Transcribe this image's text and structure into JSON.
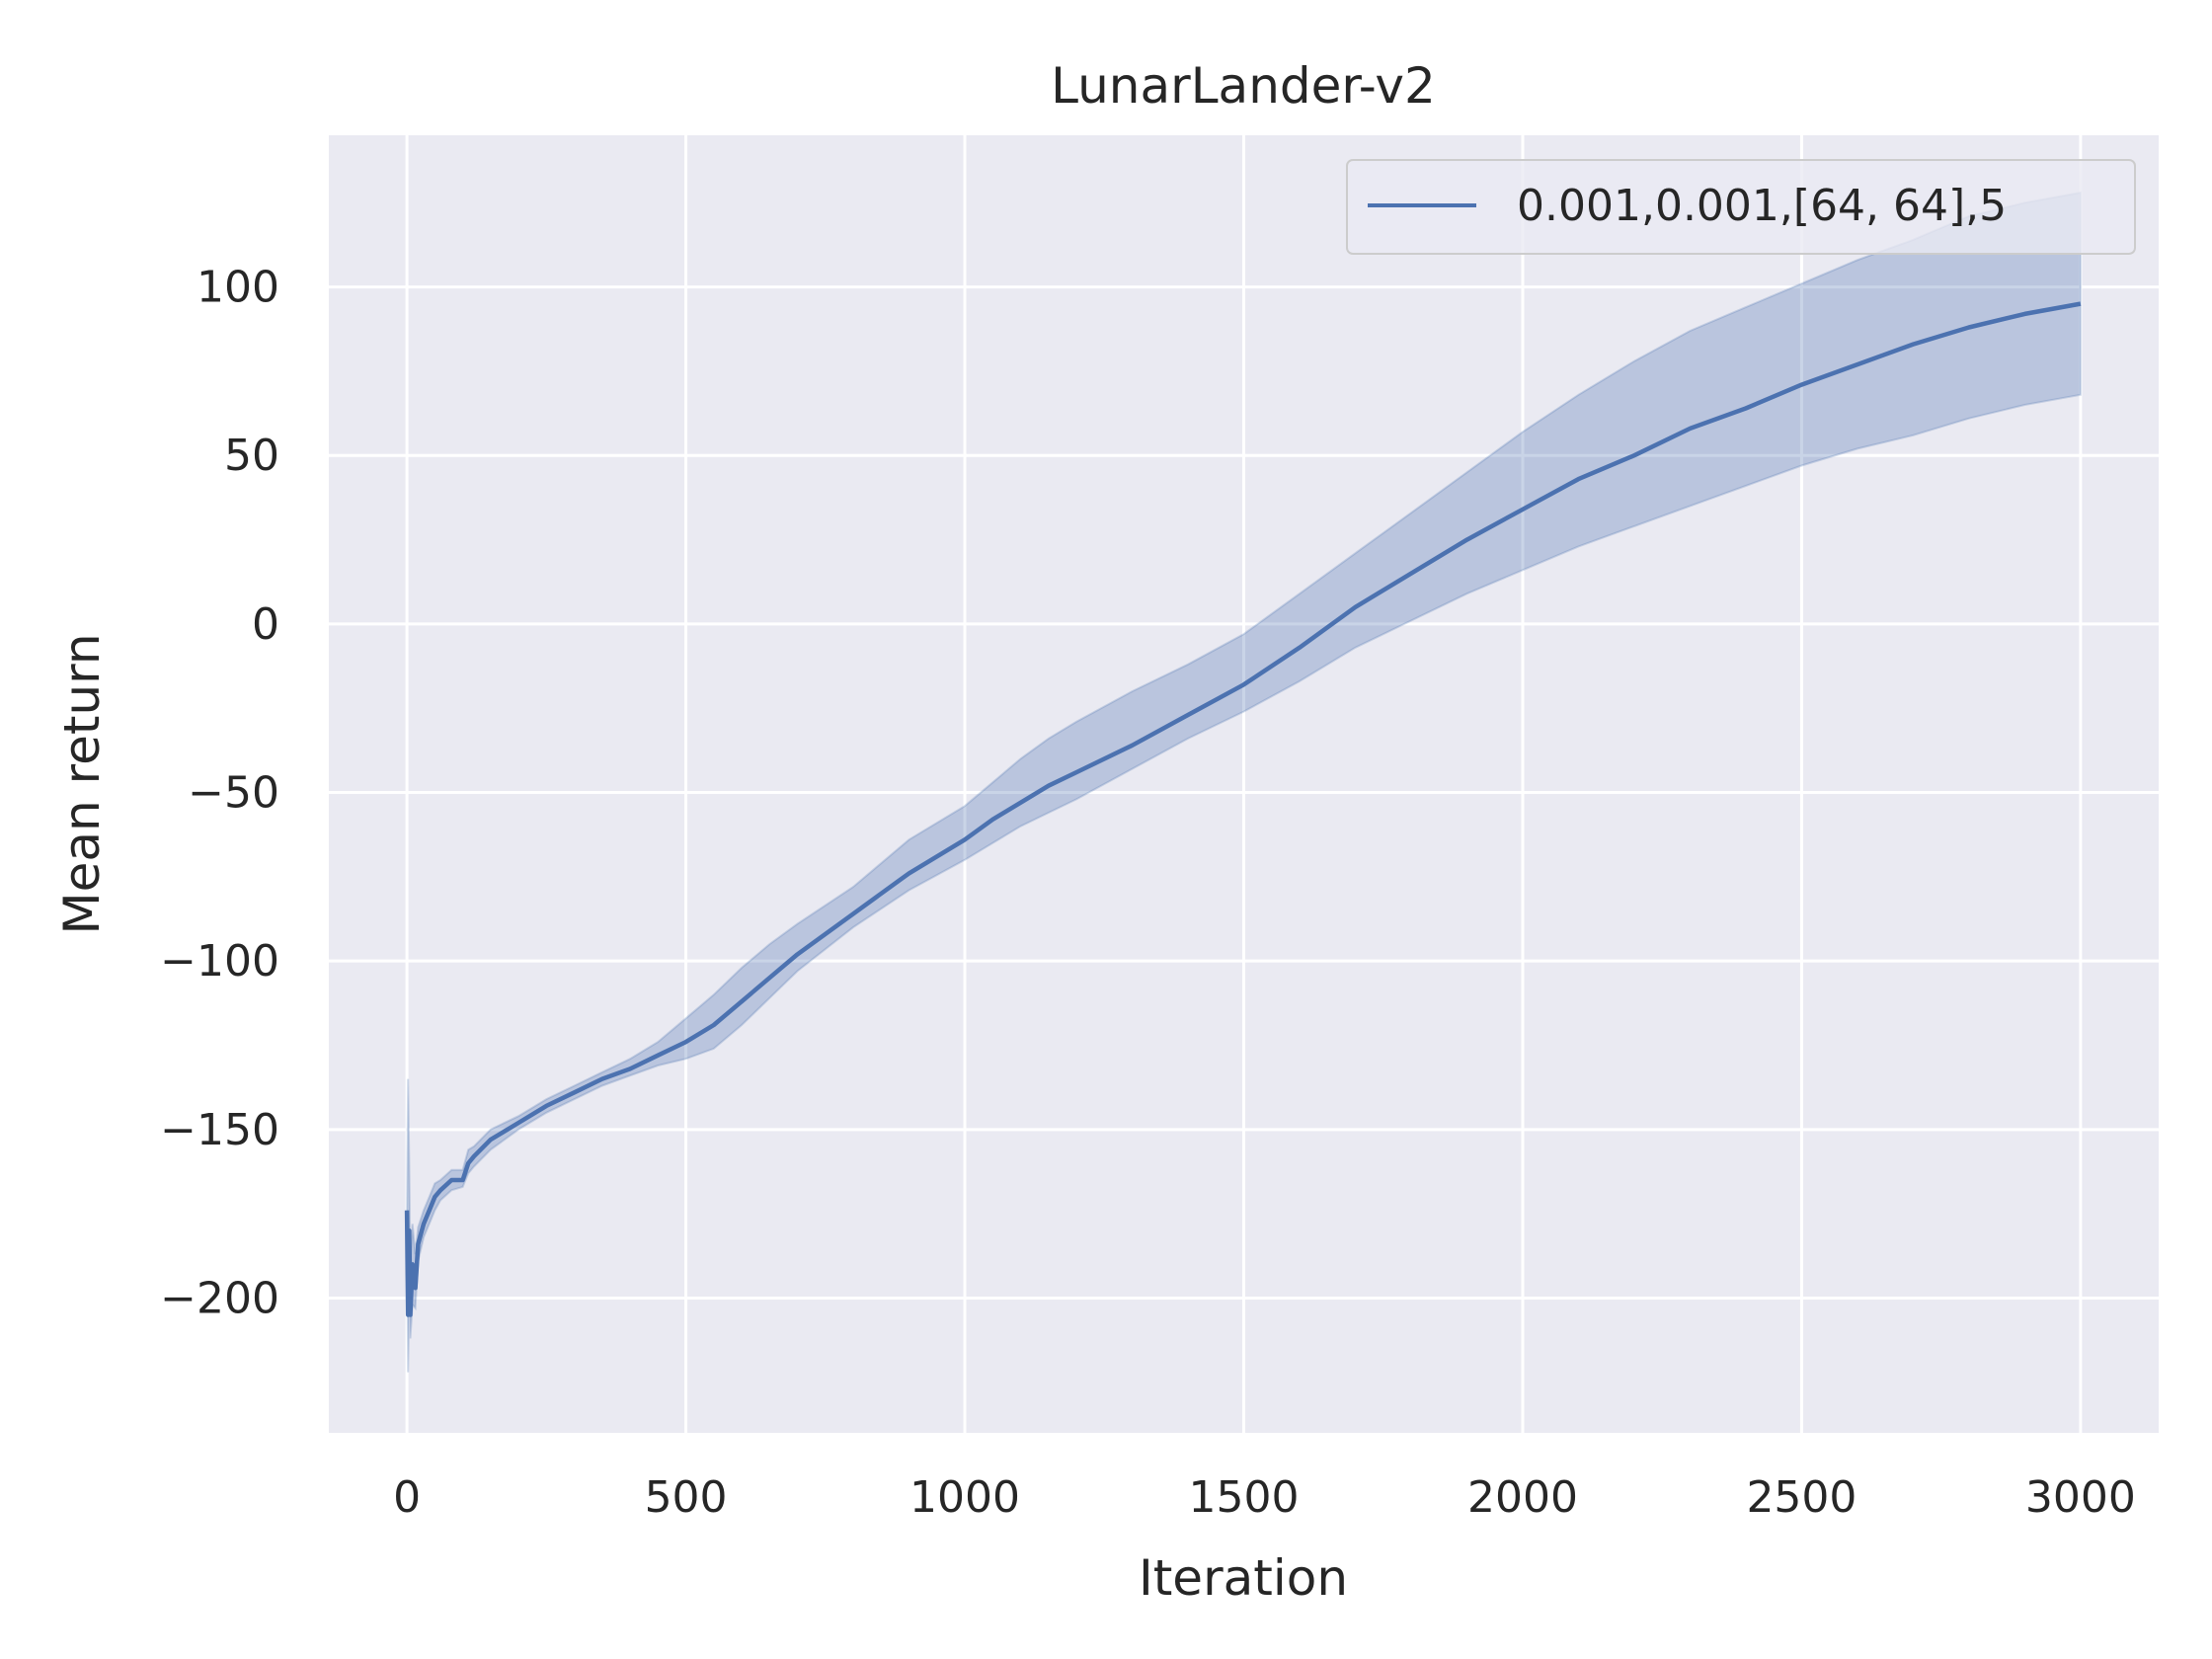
{
  "chart_data": {
    "type": "line",
    "title": "LunarLander-v2",
    "xlabel": "Iteration",
    "ylabel": "Mean return",
    "xlim": [
      -140,
      3140
    ],
    "ylim": [
      -240,
      145
    ],
    "xticks": [
      0,
      500,
      1000,
      1500,
      2000,
      2500,
      3000
    ],
    "xtick_labels": [
      "0",
      "500",
      "1000",
      "1500",
      "2000",
      "2500",
      "3000"
    ],
    "yticks": [
      -200,
      -150,
      -100,
      -50,
      0,
      50,
      100
    ],
    "ytick_labels": [
      "−200",
      "−150",
      "−100",
      "−50",
      "0",
      "50",
      "100"
    ],
    "grid": true,
    "legend_position": "top-right",
    "colors": {
      "line": "#4c72b0",
      "band": "#4c72b0",
      "axes_bg": "#eaeaf2",
      "grid": "#ffffff"
    },
    "series": [
      {
        "name": "0.001,0.001,[64, 64],5",
        "x": [
          0,
          2,
          4,
          6,
          10,
          15,
          20,
          30,
          40,
          50,
          60,
          80,
          100,
          110,
          120,
          150,
          200,
          250,
          300,
          350,
          400,
          450,
          500,
          550,
          600,
          650,
          700,
          800,
          900,
          1000,
          1050,
          1100,
          1150,
          1200,
          1300,
          1400,
          1500,
          1600,
          1700,
          1800,
          1900,
          2000,
          2100,
          2200,
          2300,
          2400,
          2500,
          2600,
          2700,
          2800,
          2900,
          3000
        ],
        "y": [
          -174,
          -205,
          -180,
          -205,
          -190,
          -197,
          -184,
          -178,
          -174,
          -170,
          -168,
          -165,
          -165,
          -160,
          -158,
          -153,
          -148,
          -143,
          -139,
          -135,
          -132,
          -128,
          -124,
          -119,
          -112,
          -105,
          -98,
          -86,
          -74,
          -64,
          -58,
          -53,
          -48,
          -44,
          -36,
          -27,
          -18,
          -7,
          5,
          15,
          25,
          34,
          43,
          50,
          58,
          64,
          71,
          77,
          83,
          88,
          92,
          95
        ],
        "lower": [
          -174,
          -222,
          -200,
          -212,
          -202,
          -203,
          -189,
          -182,
          -178,
          -174,
          -171,
          -168,
          -167,
          -163,
          -161,
          -156,
          -150,
          -145,
          -141,
          -137,
          -134,
          -131,
          -129,
          -126,
          -119,
          -111,
          -103,
          -90,
          -79,
          -70,
          -65,
          -60,
          -56,
          -52,
          -43,
          -34,
          -26,
          -17,
          -7,
          1,
          9,
          16,
          23,
          29,
          35,
          41,
          47,
          52,
          56,
          61,
          65,
          68
        ],
        "upper": [
          -174,
          -135,
          -160,
          -190,
          -178,
          -187,
          -179,
          -174,
          -170,
          -166,
          -165,
          -162,
          -162,
          -156,
          -155,
          -150,
          -146,
          -141,
          -137,
          -133,
          -129,
          -124,
          -117,
          -110,
          -102,
          -95,
          -89,
          -78,
          -64,
          -54,
          -47,
          -40,
          -34,
          -29,
          -20,
          -12,
          -3,
          9,
          21,
          33,
          45,
          57,
          68,
          78,
          87,
          94,
          101,
          108,
          114,
          121,
          125,
          128
        ]
      }
    ]
  }
}
